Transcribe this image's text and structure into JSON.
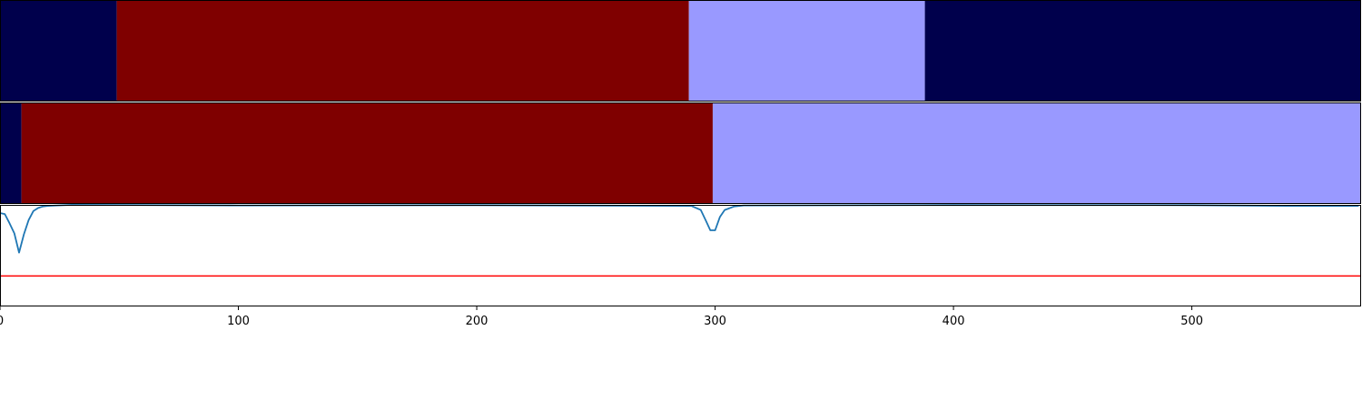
{
  "chart_data": [
    {
      "type": "heatmap",
      "colors": {
        "0": "#00004c",
        "1": "#7f0000",
        "2": "#9999ff"
      },
      "segments": [
        {
          "start": 0,
          "end": 49,
          "label": 0
        },
        {
          "start": 49,
          "end": 289,
          "label": 1
        },
        {
          "start": 289,
          "end": 388,
          "label": 2
        },
        {
          "start": 388,
          "end": 571,
          "label": 0
        }
      ]
    },
    {
      "type": "heatmap",
      "colors": {
        "0": "#00004c",
        "1": "#7f0000",
        "2": "#9999ff"
      },
      "segments": [
        {
          "start": 0,
          "end": 9,
          "label": 0
        },
        {
          "start": 9,
          "end": 299,
          "label": 1
        },
        {
          "start": 299,
          "end": 571,
          "label": 2
        }
      ]
    },
    {
      "type": "line",
      "ylim": [
        0,
        1
      ],
      "threshold": {
        "value": 0.3,
        "color": "#ff0000"
      },
      "series": [
        {
          "color": "#1f77b4",
          "x": [
            0,
            2,
            4,
            6,
            8,
            10,
            12,
            14,
            16,
            18,
            20,
            24,
            30,
            100,
            200,
            290,
            294,
            296,
            298,
            300,
            302,
            304,
            308,
            312,
            400,
            500,
            540,
            570
          ],
          "y": [
            0.92,
            0.91,
            0.82,
            0.72,
            0.53,
            0.71,
            0.85,
            0.94,
            0.97,
            0.985,
            0.99,
            0.995,
            1.0,
            0.995,
            0.997,
            0.99,
            0.95,
            0.85,
            0.75,
            0.75,
            0.88,
            0.95,
            0.985,
            0.995,
            0.998,
            0.997,
            0.99,
            0.99
          ]
        }
      ]
    }
  ],
  "xaxis": {
    "xlim": [
      0,
      571
    ],
    "ticks": [
      {
        "value": 0,
        "label": "0"
      },
      {
        "value": 100,
        "label": "100"
      },
      {
        "value": 200,
        "label": "200"
      },
      {
        "value": 300,
        "label": "300"
      },
      {
        "value": 400,
        "label": "400"
      },
      {
        "value": 500,
        "label": "500"
      }
    ]
  }
}
